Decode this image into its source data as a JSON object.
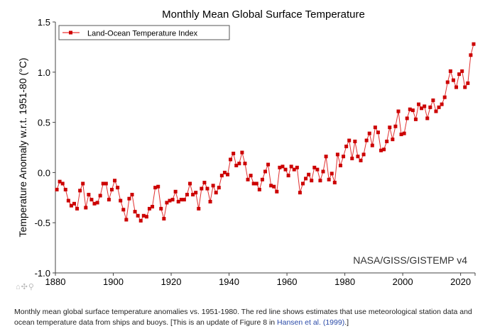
{
  "chart_data": {
    "type": "line",
    "title": "Monthly Mean Global Surface Temperature",
    "xlabel": "",
    "ylabel": "Temperature Anomaly w.r.t. 1951-80 (°C)",
    "xlim": [
      1880,
      2025
    ],
    "ylim": [
      -1.0,
      1.5
    ],
    "xticks": [
      "1880",
      "1900",
      "1920",
      "1940",
      "1960",
      "1980",
      "2000",
      "2020"
    ],
    "yticks": [
      "-1.0",
      "-0.5",
      "0.0",
      "0.5",
      "1.0",
      "1.5"
    ],
    "legend": {
      "position": "top-left",
      "entries": [
        "Land-Ocean Temperature Index"
      ]
    },
    "annotation": "NASA/GISS/GISTEMP v4",
    "series": [
      {
        "name": "Land-Ocean Temperature Index",
        "color": "#cc0000",
        "x_start": 1880,
        "values": [
          -0.17,
          -0.09,
          -0.11,
          -0.17,
          -0.28,
          -0.33,
          -0.31,
          -0.36,
          -0.18,
          -0.11,
          -0.35,
          -0.22,
          -0.27,
          -0.31,
          -0.3,
          -0.23,
          -0.11,
          -0.11,
          -0.27,
          -0.17,
          -0.08,
          -0.15,
          -0.28,
          -0.37,
          -0.47,
          -0.26,
          -0.22,
          -0.39,
          -0.43,
          -0.48,
          -0.43,
          -0.44,
          -0.36,
          -0.34,
          -0.15,
          -0.14,
          -0.36,
          -0.46,
          -0.3,
          -0.28,
          -0.27,
          -0.19,
          -0.29,
          -0.27,
          -0.27,
          -0.22,
          -0.11,
          -0.22,
          -0.2,
          -0.36,
          -0.16,
          -0.1,
          -0.16,
          -0.29,
          -0.13,
          -0.2,
          -0.15,
          -0.03,
          0.0,
          -0.02,
          0.13,
          0.19,
          0.07,
          0.09,
          0.2,
          0.09,
          -0.07,
          -0.03,
          -0.11,
          -0.11,
          -0.17,
          -0.07,
          0.01,
          0.08,
          -0.13,
          -0.14,
          -0.19,
          0.05,
          0.06,
          0.03,
          -0.03,
          0.06,
          0.03,
          0.05,
          -0.2,
          -0.11,
          -0.06,
          -0.02,
          -0.08,
          0.05,
          0.03,
          -0.08,
          0.01,
          0.16,
          -0.07,
          -0.01,
          -0.1,
          0.18,
          0.07,
          0.16,
          0.26,
          0.32,
          0.14,
          0.31,
          0.16,
          0.12,
          0.18,
          0.32,
          0.39,
          0.27,
          0.45,
          0.4,
          0.22,
          0.23,
          0.31,
          0.45,
          0.33,
          0.46,
          0.61,
          0.38,
          0.39,
          0.54,
          0.63,
          0.62,
          0.53,
          0.68,
          0.64,
          0.66,
          0.54,
          0.65,
          0.72,
          0.61,
          0.65,
          0.68,
          0.75,
          0.9,
          1.01,
          0.92,
          0.85,
          0.98,
          1.01,
          0.85,
          0.89,
          1.17,
          1.28
        ]
      }
    ]
  },
  "toolbar": {
    "icons": "⌂✣⚲"
  },
  "caption": {
    "text": "Monthly mean global surface temperature anomalies vs. 1951-1980. The red line shows estimates that use meteorological station data and ocean temperature data from ships and buoys. [This is an update of Figure 8 in ",
    "link": "Hansen et al. (1999)",
    "tail": ".]"
  }
}
